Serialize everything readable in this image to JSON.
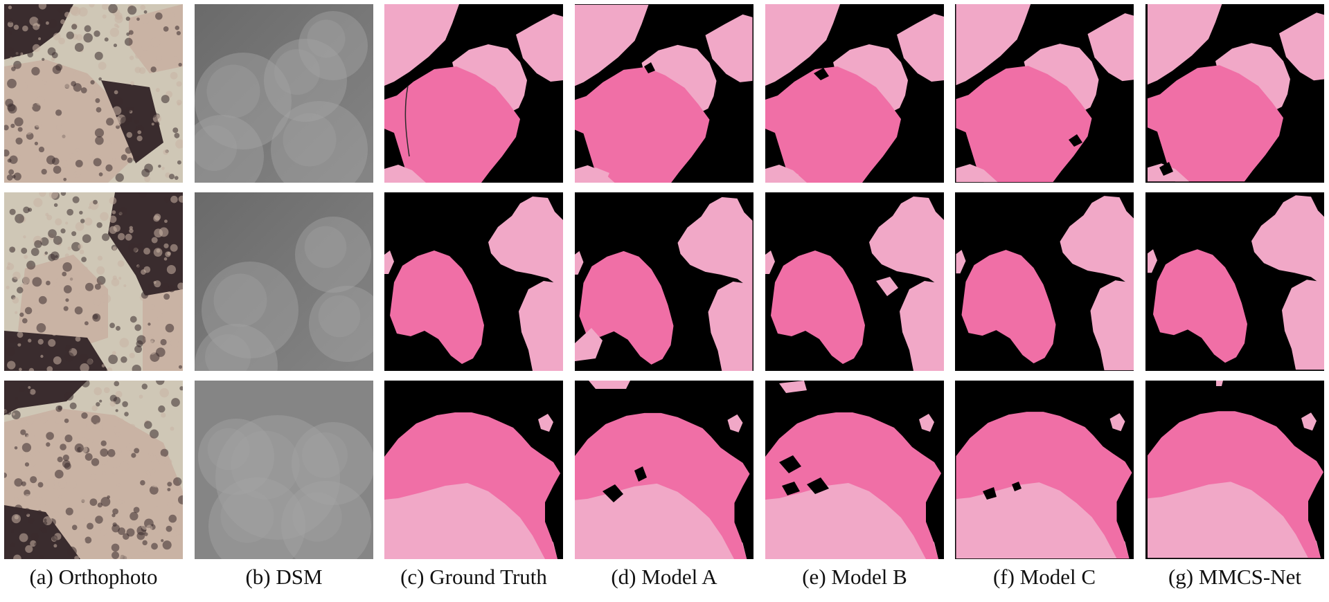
{
  "figure": {
    "captions": [
      "(a) Orthophoto",
      "(b) DSM",
      "(c) Ground Truth",
      "(d) Model A",
      "(e) Model B",
      "(f) Model C",
      "(g) MMCS-Net"
    ],
    "rows": 3,
    "columns": [
      {
        "kind": "orthophoto"
      },
      {
        "kind": "dsm"
      },
      {
        "kind": "mask"
      },
      {
        "kind": "mask"
      },
      {
        "kind": "mask"
      },
      {
        "kind": "mask"
      },
      {
        "kind": "mask"
      }
    ]
  },
  "colors": {
    "background_class": "#000000",
    "class_dark_pink": "#f06fa6",
    "class_light_pink": "#f1a8c7",
    "dsm_dark": "#6a6a6a",
    "dsm_mid": "#858585",
    "dsm_light": "#a4a4a4",
    "photo_sand": "#cfc7b6",
    "photo_coral_light": "#c9b3a4",
    "photo_coral_dark": "#3a2c2e"
  }
}
